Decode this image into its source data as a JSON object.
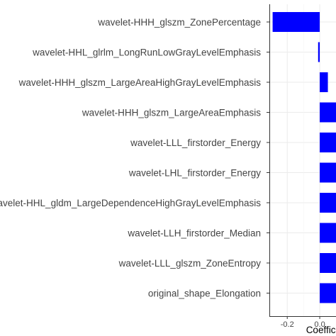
{
  "chart_data": {
    "type": "bar",
    "orientation": "horizontal",
    "categories": [
      "wavelet-HHH_glszm_ZonePercentage",
      "wavelet-HHL_glrlm_LongRunLowGrayLevelEmphasis",
      "wavelet-HHH_glszm_LargeAreaHighGrayLevelEmphasis",
      "wavelet-HHH_glszm_LargeAreaEmphasis",
      "wavelet-LLL_firstorder_Energy",
      "wavelet-LHL_firstorder_Energy",
      "wavelet-HHL_gldm_LargeDependenceHighGrayLevelEmphasis",
      "wavelet-LLH_firstorder_Median",
      "wavelet-LLL_glszm_ZoneEntropy",
      "original_shape_Elongation"
    ],
    "values": [
      -0.29,
      -0.01,
      0.05,
      0.1,
      0.1,
      0.1,
      0.1,
      0.1,
      0.1,
      0.1
    ],
    "xlim": [
      -0.31,
      0.1
    ],
    "xticks": [
      -0.2,
      0.0
    ],
    "xtick_labels": [
      "-0.2",
      "0.0"
    ],
    "xlabel": "Coefficient",
    "ylabel": "",
    "title": "",
    "grid": true,
    "colors": {
      "bar": "#0000ff",
      "grid_major": "#ebebeb",
      "grid_minor": "#f4f4f4",
      "panel_border": "#333333"
    }
  }
}
